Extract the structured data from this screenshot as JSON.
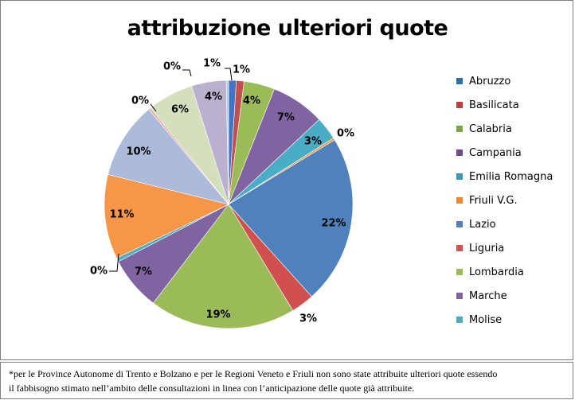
{
  "chart_data": {
    "type": "pie",
    "title": "attribuzione ulteriori quote",
    "legend_position": "right",
    "slices": [
      {
        "name": "Abruzzo",
        "value": 1,
        "label": "1%",
        "color": "#4472c4"
      },
      {
        "name": "Basilicata",
        "value": 1,
        "label": "1%",
        "color": "#c0504d"
      },
      {
        "name": "Calabria",
        "value": 4,
        "label": "4%",
        "color": "#9bbb59"
      },
      {
        "name": "Campania",
        "value": 7,
        "label": "7%",
        "color": "#8064a2"
      },
      {
        "name": "Emilia Romagna",
        "value": 3,
        "label": "3%",
        "color": "#4bacc6"
      },
      {
        "name": "Friuli V.G.",
        "value": 0.3,
        "label": "0%",
        "color": "#f79646"
      },
      {
        "name": "Lazio",
        "value": 22,
        "label": "22%",
        "color": "#4f81bd"
      },
      {
        "name": "Liguria",
        "value": 3,
        "label": "3%",
        "color": "#d0504d"
      },
      {
        "name": "Lombardia",
        "value": 19,
        "label": "19%",
        "color": "#9bbb59"
      },
      {
        "name": "Marche",
        "value": 7,
        "label": "7%",
        "color": "#8064a2"
      },
      {
        "name": "Molise",
        "value": 0.5,
        "label": "0%",
        "color": "#4bacc6"
      },
      {
        "name": "",
        "value": 11,
        "label": "11%",
        "color": "#f79646"
      },
      {
        "name": "",
        "value": 10,
        "label": "10%",
        "color": "#abbbd9"
      },
      {
        "name": "",
        "value": 0.3,
        "label": "0%",
        "color": "#e8a8a8"
      },
      {
        "name": "",
        "value": 6,
        "label": "6%",
        "color": "#d4dfbd"
      },
      {
        "name": "",
        "value": 4.5,
        "label": "4%",
        "color": "#bcb0cf"
      },
      {
        "name": "",
        "value": 0.3,
        "label": "0%",
        "color": "#a9d3df"
      }
    ]
  },
  "legend": {
    "items": [
      {
        "label": "Abruzzo",
        "color": "#2e6ea5"
      },
      {
        "label": "Basilicata",
        "color": "#b5403d"
      },
      {
        "label": "Calabria",
        "color": "#78a844"
      },
      {
        "label": "Campania",
        "color": "#6b4c8f"
      },
      {
        "label": "Emilia Romagna",
        "color": "#3a9ab4"
      },
      {
        "label": "Friuli V.G.",
        "color": "#e8893a"
      },
      {
        "label": "Lazio",
        "color": "#4f81bd"
      },
      {
        "label": "Liguria",
        "color": "#d0504d"
      },
      {
        "label": "Lombardia",
        "color": "#9bbb59"
      },
      {
        "label": "Marche",
        "color": "#8064a2"
      },
      {
        "label": "Molise",
        "color": "#4bacc6"
      }
    ]
  },
  "footnote": {
    "line1": "*per le Province Autonome di Trento e Bolzano e per le Regioni Veneto e Friuli non sono state attribuite ulteriori quote essendo",
    "line2": "il fabbisogno  stimato nell’ambito delle consultazioni in linea con l’anticipazione delle quote già attribuite."
  }
}
